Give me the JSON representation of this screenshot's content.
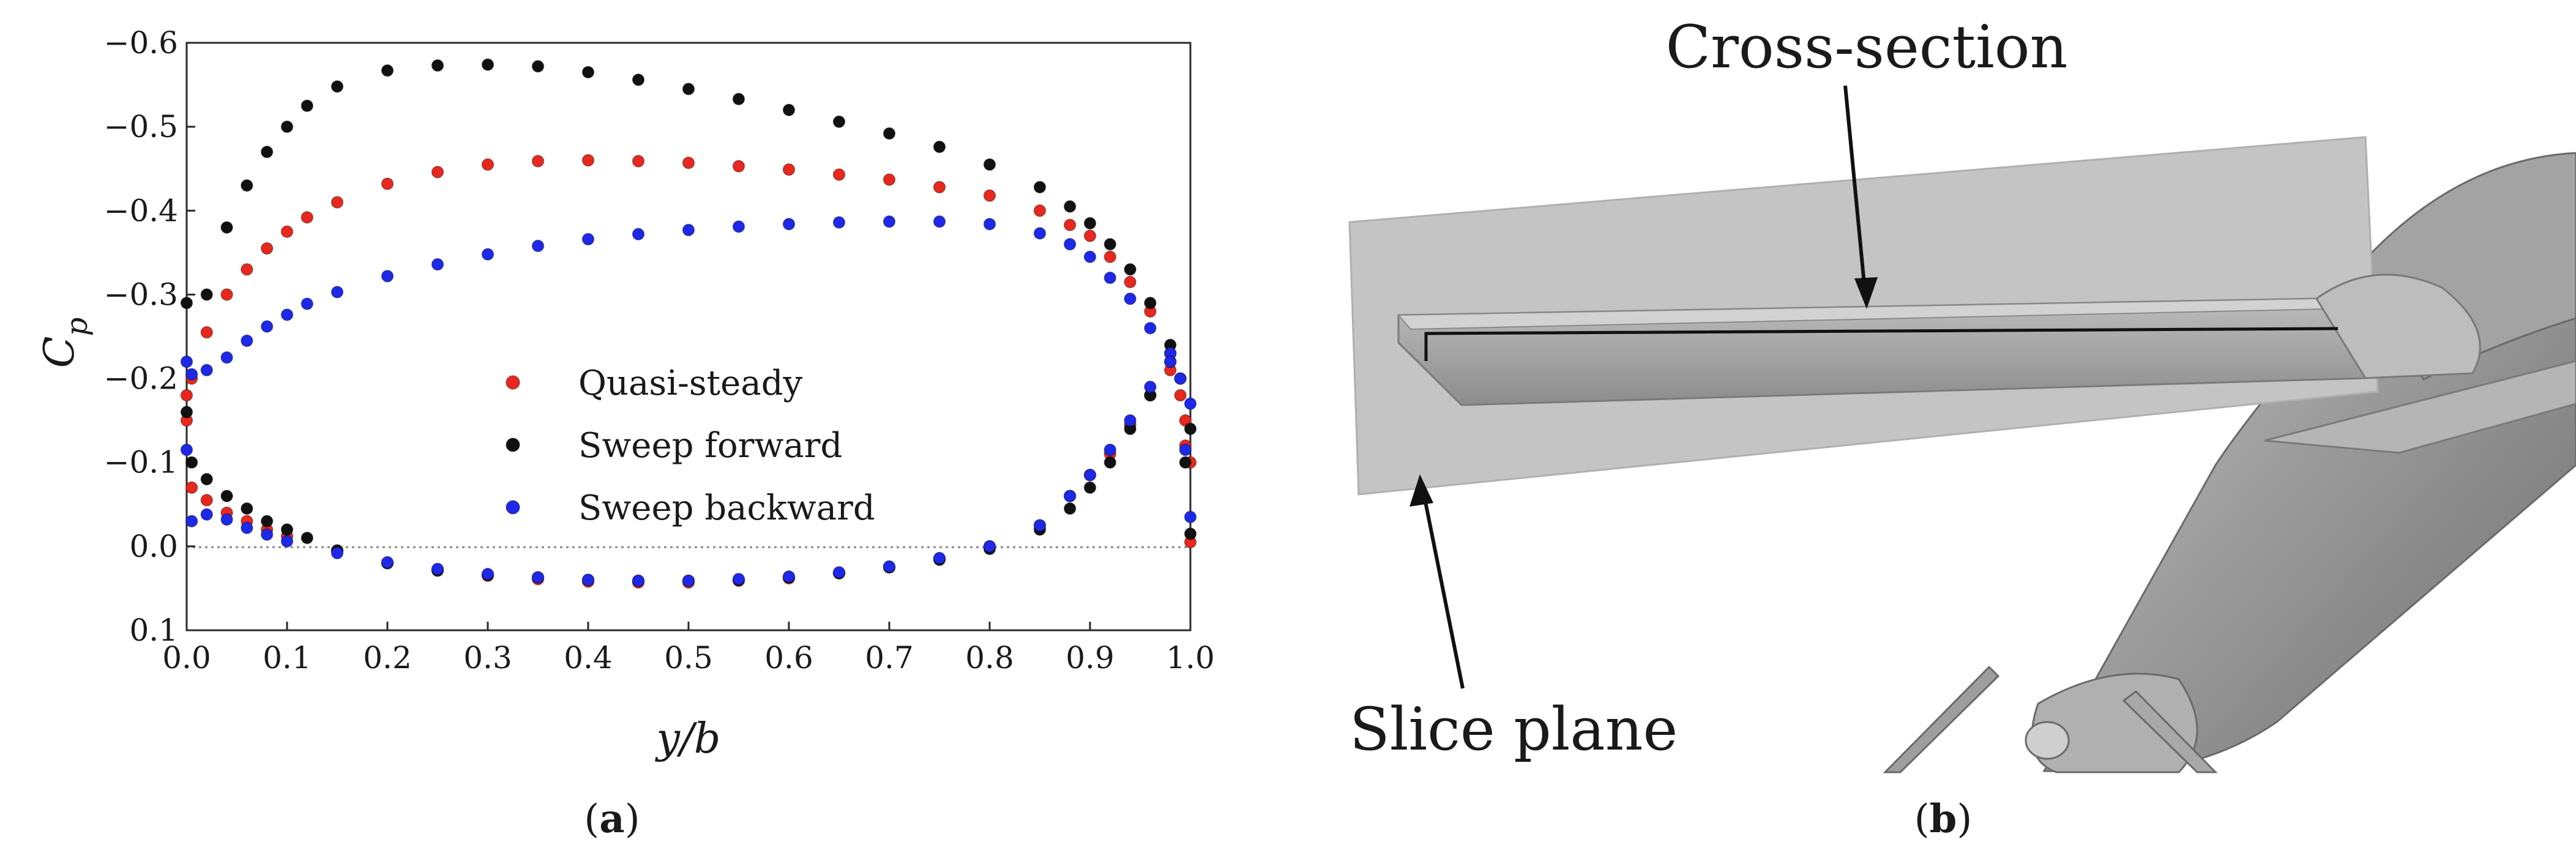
{
  "chart_data": {
    "type": "scatter",
    "title": "",
    "xlabel": "y/b",
    "ylabel": "C_p",
    "xlim": [
      0.0,
      1.0
    ],
    "ylim": [
      0.1,
      -0.6
    ],
    "y_axis_inverted": true,
    "xticks": [
      "0.0",
      "0.1",
      "0.2",
      "0.3",
      "0.4",
      "0.5",
      "0.6",
      "0.7",
      "0.8",
      "0.9",
      "1.0"
    ],
    "yticks": [
      "−0.6",
      "−0.5",
      "−0.4",
      "−0.3",
      "−0.2",
      "−0.1",
      "0.0",
      "0.1"
    ],
    "reference_line": {
      "y": 0.0,
      "style": "dotted"
    },
    "legend_position": "center",
    "series": [
      {
        "name": "Quasi-steady",
        "color": "#e8281e",
        "upper": [
          [
            0.0,
            -0.18
          ],
          [
            0.005,
            -0.2
          ],
          [
            0.02,
            -0.255
          ],
          [
            0.04,
            -0.3
          ],
          [
            0.06,
            -0.33
          ],
          [
            0.08,
            -0.355
          ],
          [
            0.1,
            -0.375
          ],
          [
            0.12,
            -0.392
          ],
          [
            0.15,
            -0.41
          ],
          [
            0.2,
            -0.432
          ],
          [
            0.25,
            -0.446
          ],
          [
            0.3,
            -0.455
          ],
          [
            0.35,
            -0.459
          ],
          [
            0.4,
            -0.46
          ],
          [
            0.45,
            -0.459
          ],
          [
            0.5,
            -0.457
          ],
          [
            0.55,
            -0.453
          ],
          [
            0.6,
            -0.449
          ],
          [
            0.65,
            -0.443
          ],
          [
            0.7,
            -0.437
          ],
          [
            0.75,
            -0.428
          ],
          [
            0.8,
            -0.418
          ],
          [
            0.85,
            -0.4
          ],
          [
            0.88,
            -0.383
          ],
          [
            0.9,
            -0.37
          ],
          [
            0.92,
            -0.345
          ],
          [
            0.94,
            -0.315
          ],
          [
            0.96,
            -0.28
          ],
          [
            0.98,
            -0.23
          ],
          [
            0.99,
            -0.18
          ],
          [
            0.995,
            -0.15
          ],
          [
            1.0,
            -0.1
          ]
        ],
        "lower": [
          [
            0.0,
            -0.15
          ],
          [
            0.005,
            -0.07
          ],
          [
            0.02,
            -0.055
          ],
          [
            0.04,
            -0.04
          ],
          [
            0.06,
            -0.03
          ],
          [
            0.08,
            -0.02
          ],
          [
            0.1,
            -0.012
          ],
          [
            0.15,
            0.005
          ],
          [
            0.2,
            0.02
          ],
          [
            0.25,
            0.028
          ],
          [
            0.3,
            0.035
          ],
          [
            0.35,
            0.039
          ],
          [
            0.4,
            0.042
          ],
          [
            0.45,
            0.043
          ],
          [
            0.5,
            0.043
          ],
          [
            0.55,
            0.041
          ],
          [
            0.6,
            0.038
          ],
          [
            0.65,
            0.032
          ],
          [
            0.7,
            0.025
          ],
          [
            0.75,
            0.015
          ],
          [
            0.8,
            0.0
          ],
          [
            0.85,
            -0.025
          ],
          [
            0.88,
            -0.06
          ],
          [
            0.9,
            -0.085
          ],
          [
            0.92,
            -0.11
          ],
          [
            0.94,
            -0.145
          ],
          [
            0.96,
            -0.18
          ],
          [
            0.98,
            -0.21
          ],
          [
            0.995,
            -0.12
          ],
          [
            1.0,
            -0.005
          ]
        ]
      },
      {
        "name": "Sweep forward",
        "color": "#111111",
        "upper": [
          [
            0.0,
            -0.29
          ],
          [
            0.02,
            -0.3
          ],
          [
            0.04,
            -0.38
          ],
          [
            0.06,
            -0.43
          ],
          [
            0.08,
            -0.47
          ],
          [
            0.1,
            -0.5
          ],
          [
            0.12,
            -0.525
          ],
          [
            0.15,
            -0.548
          ],
          [
            0.2,
            -0.567
          ],
          [
            0.25,
            -0.573
          ],
          [
            0.3,
            -0.574
          ],
          [
            0.35,
            -0.572
          ],
          [
            0.4,
            -0.565
          ],
          [
            0.45,
            -0.556
          ],
          [
            0.5,
            -0.545
          ],
          [
            0.55,
            -0.533
          ],
          [
            0.6,
            -0.52
          ],
          [
            0.65,
            -0.506
          ],
          [
            0.7,
            -0.492
          ],
          [
            0.75,
            -0.476
          ],
          [
            0.8,
            -0.455
          ],
          [
            0.85,
            -0.428
          ],
          [
            0.88,
            -0.405
          ],
          [
            0.9,
            -0.385
          ],
          [
            0.92,
            -0.36
          ],
          [
            0.94,
            -0.33
          ],
          [
            0.96,
            -0.29
          ],
          [
            0.98,
            -0.24
          ],
          [
            0.99,
            -0.2
          ],
          [
            1.0,
            -0.14
          ]
        ],
        "lower": [
          [
            0.0,
            -0.16
          ],
          [
            0.005,
            -0.1
          ],
          [
            0.02,
            -0.08
          ],
          [
            0.04,
            -0.06
          ],
          [
            0.06,
            -0.045
          ],
          [
            0.08,
            -0.03
          ],
          [
            0.1,
            -0.02
          ],
          [
            0.12,
            -0.01
          ],
          [
            0.15,
            0.005
          ],
          [
            0.2,
            0.02
          ],
          [
            0.25,
            0.029
          ],
          [
            0.3,
            0.034
          ],
          [
            0.35,
            0.037
          ],
          [
            0.4,
            0.04
          ],
          [
            0.45,
            0.041
          ],
          [
            0.5,
            0.041
          ],
          [
            0.55,
            0.04
          ],
          [
            0.6,
            0.037
          ],
          [
            0.65,
            0.032
          ],
          [
            0.7,
            0.025
          ],
          [
            0.75,
            0.016
          ],
          [
            0.8,
            0.003
          ],
          [
            0.85,
            -0.02
          ],
          [
            0.88,
            -0.045
          ],
          [
            0.9,
            -0.07
          ],
          [
            0.92,
            -0.1
          ],
          [
            0.94,
            -0.14
          ],
          [
            0.96,
            -0.18
          ],
          [
            0.98,
            -0.22
          ],
          [
            0.995,
            -0.1
          ],
          [
            1.0,
            -0.015
          ]
        ]
      },
      {
        "name": "Sweep backward",
        "color": "#1e28e8",
        "upper": [
          [
            0.0,
            -0.22
          ],
          [
            0.005,
            -0.205
          ],
          [
            0.02,
            -0.21
          ],
          [
            0.04,
            -0.225
          ],
          [
            0.06,
            -0.245
          ],
          [
            0.08,
            -0.262
          ],
          [
            0.1,
            -0.276
          ],
          [
            0.12,
            -0.289
          ],
          [
            0.15,
            -0.303
          ],
          [
            0.2,
            -0.322
          ],
          [
            0.25,
            -0.336
          ],
          [
            0.3,
            -0.348
          ],
          [
            0.35,
            -0.358
          ],
          [
            0.4,
            -0.366
          ],
          [
            0.45,
            -0.372
          ],
          [
            0.5,
            -0.377
          ],
          [
            0.55,
            -0.381
          ],
          [
            0.6,
            -0.384
          ],
          [
            0.65,
            -0.386
          ],
          [
            0.7,
            -0.387
          ],
          [
            0.75,
            -0.387
          ],
          [
            0.8,
            -0.384
          ],
          [
            0.85,
            -0.373
          ],
          [
            0.88,
            -0.36
          ],
          [
            0.9,
            -0.345
          ],
          [
            0.92,
            -0.32
          ],
          [
            0.94,
            -0.295
          ],
          [
            0.96,
            -0.26
          ],
          [
            0.98,
            -0.23
          ],
          [
            0.99,
            -0.2
          ],
          [
            1.0,
            -0.17
          ]
        ],
        "lower": [
          [
            0.0,
            -0.115
          ],
          [
            0.005,
            -0.03
          ],
          [
            0.02,
            -0.038
          ],
          [
            0.04,
            -0.032
          ],
          [
            0.06,
            -0.022
          ],
          [
            0.08,
            -0.014
          ],
          [
            0.1,
            -0.006
          ],
          [
            0.15,
            0.008
          ],
          [
            0.2,
            0.019
          ],
          [
            0.25,
            0.027
          ],
          [
            0.3,
            0.033
          ],
          [
            0.35,
            0.037
          ],
          [
            0.4,
            0.04
          ],
          [
            0.45,
            0.041
          ],
          [
            0.5,
            0.041
          ],
          [
            0.55,
            0.039
          ],
          [
            0.6,
            0.036
          ],
          [
            0.65,
            0.031
          ],
          [
            0.7,
            0.024
          ],
          [
            0.75,
            0.014
          ],
          [
            0.8,
            0.0
          ],
          [
            0.85,
            -0.025
          ],
          [
            0.88,
            -0.06
          ],
          [
            0.9,
            -0.085
          ],
          [
            0.92,
            -0.115
          ],
          [
            0.94,
            -0.15
          ],
          [
            0.96,
            -0.19
          ],
          [
            0.98,
            -0.22
          ],
          [
            0.995,
            -0.115
          ],
          [
            1.0,
            -0.035
          ]
        ]
      }
    ]
  },
  "captions": {
    "left": [
      "(",
      "a",
      ")"
    ],
    "right": [
      "(",
      "b",
      ")"
    ]
  },
  "render": {
    "annotation_cross_section": "Cross-section",
    "annotation_slice_plane": "Slice plane"
  }
}
